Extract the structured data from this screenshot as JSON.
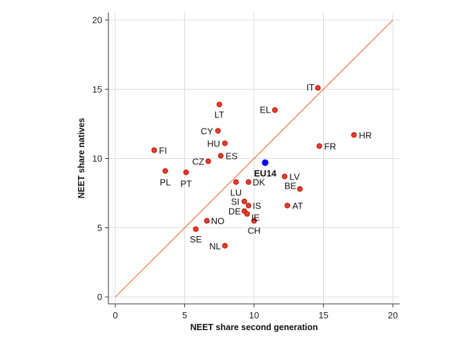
{
  "chart_data": {
    "type": "scatter",
    "xlabel": "NEET share second generation",
    "ylabel": "NEET share natives",
    "xlim": [
      0,
      20
    ],
    "ylim": [
      0,
      20
    ],
    "xticks": [
      0,
      5,
      10,
      15,
      20
    ],
    "yticks": [
      0,
      5,
      10,
      15,
      20
    ],
    "grid": true,
    "diagonal_line": {
      "from": [
        0,
        0
      ],
      "to": [
        20,
        20
      ],
      "color": "#f07040"
    },
    "colors": {
      "country": "#e8412c",
      "country_edge": "#c0190e",
      "highlight": "#0000ff",
      "grid": "#dcdcdc",
      "axis": "#333333"
    },
    "points": [
      {
        "label": "IT",
        "x": 14.6,
        "y": 15.1
      },
      {
        "label": "EL",
        "x": 11.5,
        "y": 13.5
      },
      {
        "label": "LT",
        "x": 7.5,
        "y": 13.9
      },
      {
        "label": "HR",
        "x": 17.2,
        "y": 11.7
      },
      {
        "label": "CY",
        "x": 7.4,
        "y": 12.0
      },
      {
        "label": "HU",
        "x": 7.9,
        "y": 11.1
      },
      {
        "label": "FR",
        "x": 14.7,
        "y": 10.9
      },
      {
        "label": "FI",
        "x": 2.8,
        "y": 10.6
      },
      {
        "label": "ES",
        "x": 7.6,
        "y": 10.2
      },
      {
        "label": "CZ",
        "x": 6.7,
        "y": 9.8
      },
      {
        "label": "PL",
        "x": 3.6,
        "y": 9.1
      },
      {
        "label": "PT",
        "x": 5.1,
        "y": 9.0
      },
      {
        "label": "EU14",
        "x": 10.8,
        "y": 9.7,
        "highlight": true
      },
      {
        "label": "LV",
        "x": 12.2,
        "y": 8.7
      },
      {
        "label": "DK",
        "x": 9.6,
        "y": 8.3
      },
      {
        "label": "LU",
        "x": 8.7,
        "y": 8.3
      },
      {
        "label": "BE",
        "x": 13.3,
        "y": 7.8
      },
      {
        "label": "SI",
        "x": 9.3,
        "y": 6.9
      },
      {
        "label": "IS",
        "x": 9.6,
        "y": 6.6
      },
      {
        "label": "AT",
        "x": 12.4,
        "y": 6.6
      },
      {
        "label": "DE",
        "x": 9.3,
        "y": 6.2
      },
      {
        "label": "IE",
        "x": 9.5,
        "y": 6.0
      },
      {
        "label": "NO",
        "x": 6.6,
        "y": 5.5
      },
      {
        "label": "CH",
        "x": 10.0,
        "y": 5.5
      },
      {
        "label": "SE",
        "x": 5.8,
        "y": 4.9
      },
      {
        "label": "NL",
        "x": 7.9,
        "y": 3.7
      }
    ]
  }
}
